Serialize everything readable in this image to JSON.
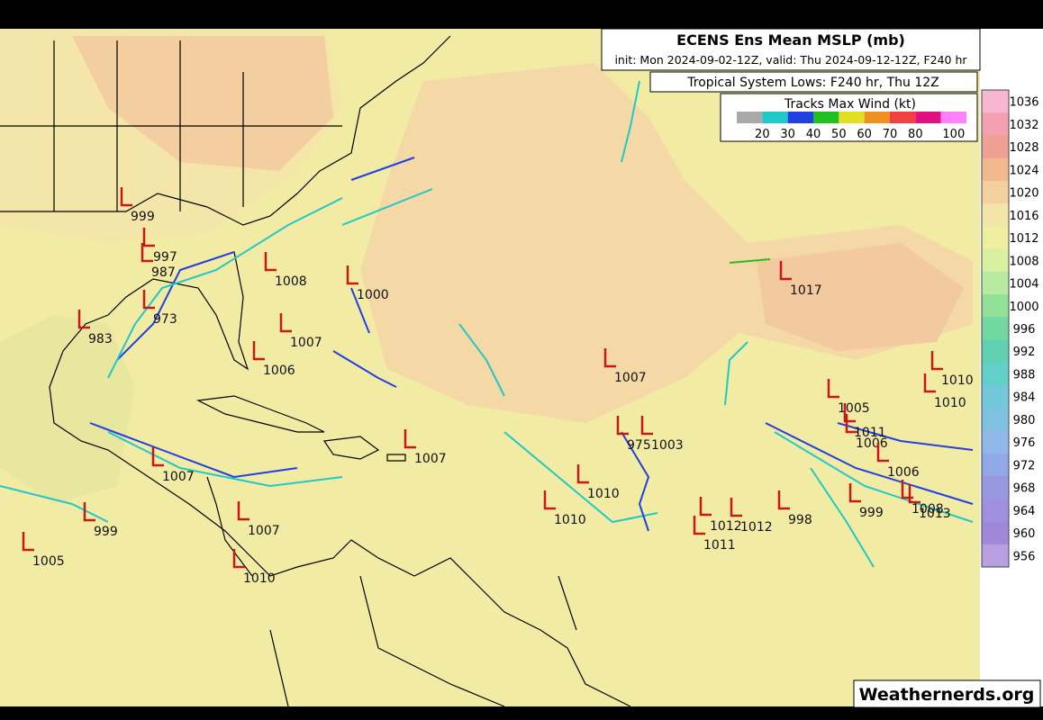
{
  "header": {
    "title": "ECENS Ens Mean MSLP (mb)",
    "subtitle": "init: Mon 2024-09-02-12Z, valid: Thu 2024-09-12-12Z, F240 hr",
    "tropical_label": "Tropical System Lows: F240 hr, Thu 12Z"
  },
  "tracks_legend": {
    "title": "Tracks Max Wind (kt)",
    "labels": [
      20,
      30,
      40,
      50,
      60,
      70,
      80,
      100
    ],
    "colors": [
      "#a9a9a9",
      "#20c8c8",
      "#2040e0",
      "#20c020",
      "#e0e020",
      "#f09020",
      "#f04040",
      "#e01080",
      "#ff80ff"
    ]
  },
  "pressure_scale": {
    "labels": [
      1036,
      1032,
      1028,
      1024,
      1020,
      1016,
      1012,
      1008,
      1004,
      1000,
      996,
      992,
      988,
      984,
      980,
      976,
      972,
      968,
      964,
      960,
      956
    ]
  },
  "lows": [
    999,
    997,
    987,
    973,
    983,
    1008,
    1000,
    1007,
    1006,
    1007,
    1017,
    1007,
    1007,
    1010,
    1010,
    975,
    1003,
    1011,
    1012,
    1012,
    998,
    1007,
    999,
    1005,
    1010,
    1005,
    1011,
    1006,
    999,
    1013,
    1010,
    1010,
    1008,
    1006
  ],
  "watermark": "Weathernerds.org"
}
